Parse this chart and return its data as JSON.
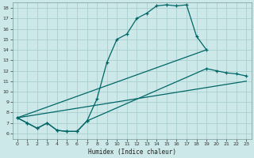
{
  "xlabel": "Humidex (Indice chaleur)",
  "bg_color": "#cce8e8",
  "grid_color": "#aad0d0",
  "line_color": "#006666",
  "xlim": [
    -0.5,
    23.5
  ],
  "ylim": [
    5.5,
    18.5
  ],
  "xticks": [
    0,
    1,
    2,
    3,
    4,
    5,
    6,
    7,
    8,
    9,
    10,
    11,
    12,
    13,
    14,
    15,
    16,
    17,
    18,
    19,
    20,
    21,
    22,
    23
  ],
  "yticks": [
    6,
    7,
    8,
    9,
    10,
    11,
    12,
    13,
    14,
    15,
    16,
    17,
    18
  ],
  "curve1_x": [
    0,
    1,
    2,
    3,
    4,
    5,
    6,
    7,
    8,
    9,
    10,
    11,
    12,
    13,
    14,
    15,
    16,
    17,
    18,
    19
  ],
  "curve1_y": [
    7.5,
    7.0,
    6.5,
    7.0,
    6.3,
    6.2,
    6.2,
    7.2,
    9.3,
    12.8,
    15.0,
    15.5,
    17.0,
    17.5,
    18.2,
    18.3,
    18.2,
    18.3,
    15.3,
    14.0
  ],
  "curve2_x": [
    0,
    19
  ],
  "curve2_y": [
    7.5,
    14.0
  ],
  "curve3_x": [
    0,
    1,
    2,
    3,
    4,
    5,
    6,
    7,
    19,
    20,
    21,
    22,
    23
  ],
  "curve3_y": [
    7.5,
    7.0,
    6.5,
    7.0,
    6.3,
    6.2,
    6.2,
    7.2,
    12.2,
    12.0,
    11.8,
    11.7,
    11.5
  ],
  "curve4_x": [
    0,
    23
  ],
  "curve4_y": [
    7.5,
    11.0
  ]
}
